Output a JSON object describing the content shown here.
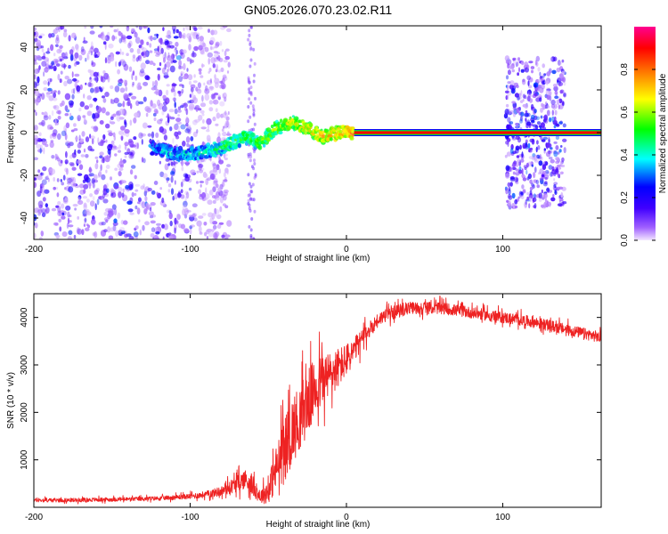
{
  "figure": {
    "title": "GN05.2026.070.23.02.R11"
  },
  "chart_data": [
    {
      "type": "heatmap",
      "name": "spectrogram",
      "xlabel": "Height of straight line (km)",
      "ylabel": "Frequency (Hz)",
      "xlim": [
        -200,
        163
      ],
      "ylim": [
        -50,
        50
      ],
      "xticks": [
        -200,
        -100,
        0,
        100
      ],
      "yticks": [
        -40,
        -20,
        0,
        20,
        40
      ],
      "colorbar": {
        "label": "Normalized spectral amplitude",
        "range": [
          0,
          1
        ],
        "ticks": [
          0.0,
          0.2,
          0.4,
          0.6,
          0.8
        ],
        "tick_labels": [
          "0.0",
          "0.2",
          "0.4",
          "0.6",
          "0.8"
        ],
        "colors": [
          "#e6ccff",
          "#6a00ff",
          "#0000ff",
          "#00ffff",
          "#00ff00",
          "#ffff00",
          "#ff8000",
          "#ff0000",
          "#ff0080"
        ]
      },
      "features": [
        {
          "name": "noise",
          "x_range": [
            -200,
            -85
          ],
          "freq_range": [
            -50,
            50
          ],
          "level": 0.15
        },
        {
          "name": "signal-drift",
          "points": [
            [
              -125,
              -7
            ],
            [
              -110,
              -10
            ],
            [
              -95,
              -10
            ],
            [
              -80,
              -7
            ],
            [
              -65,
              -2
            ],
            [
              -55,
              -5
            ],
            [
              -45,
              2
            ],
            [
              -35,
              5
            ],
            [
              -25,
              2
            ],
            [
              -15,
              -2
            ],
            [
              -5,
              0
            ],
            [
              5,
              0
            ]
          ]
        },
        {
          "name": "carrier",
          "x_range": [
            5,
            163
          ],
          "freq": 0,
          "level": 0.9
        },
        {
          "name": "noise-band",
          "x_range": [
            102,
            140
          ],
          "freq_range": [
            -35,
            35
          ],
          "level": 0.2
        }
      ]
    },
    {
      "type": "line",
      "name": "snr",
      "xlabel": "Height of straight line (km)",
      "ylabel": "SNR (10 * v/v)",
      "xlim": [
        -200,
        163
      ],
      "ylim": [
        0,
        4500
      ],
      "xticks": [
        -200,
        -100,
        0,
        100
      ],
      "yticks": [
        1000,
        2000,
        3000,
        4000
      ],
      "color": "#ee2222",
      "series": [
        {
          "name": "SNR",
          "x": [
            -200,
            -180,
            -160,
            -140,
            -120,
            -100,
            -90,
            -80,
            -70,
            -65,
            -60,
            -55,
            -50,
            -45,
            -40,
            -35,
            -30,
            -25,
            -20,
            -15,
            -10,
            -5,
            0,
            5,
            10,
            15,
            20,
            25,
            30,
            35,
            40,
            50,
            60,
            70,
            80,
            100,
            120,
            140,
            160,
            163
          ],
          "values": [
            150,
            150,
            160,
            170,
            190,
            230,
            270,
            340,
            500,
            600,
            450,
            220,
            350,
            800,
            1200,
            1600,
            1900,
            2200,
            2500,
            2700,
            2800,
            2950,
            3100,
            3300,
            3550,
            3750,
            3950,
            4050,
            4100,
            4150,
            4200,
            4200,
            4200,
            4150,
            4100,
            4000,
            3900,
            3750,
            3600,
            3550
          ],
          "noise_amplitude": [
            60,
            60,
            60,
            60,
            60,
            80,
            100,
            150,
            250,
            300,
            300,
            200,
            400,
            700,
            900,
            1000,
            1000,
            1000,
            900,
            800,
            700,
            600,
            500,
            400,
            300,
            250,
            200,
            200,
            200,
            200,
            180,
            180,
            180,
            170,
            170,
            170,
            170,
            170,
            170,
            170
          ]
        }
      ]
    }
  ]
}
